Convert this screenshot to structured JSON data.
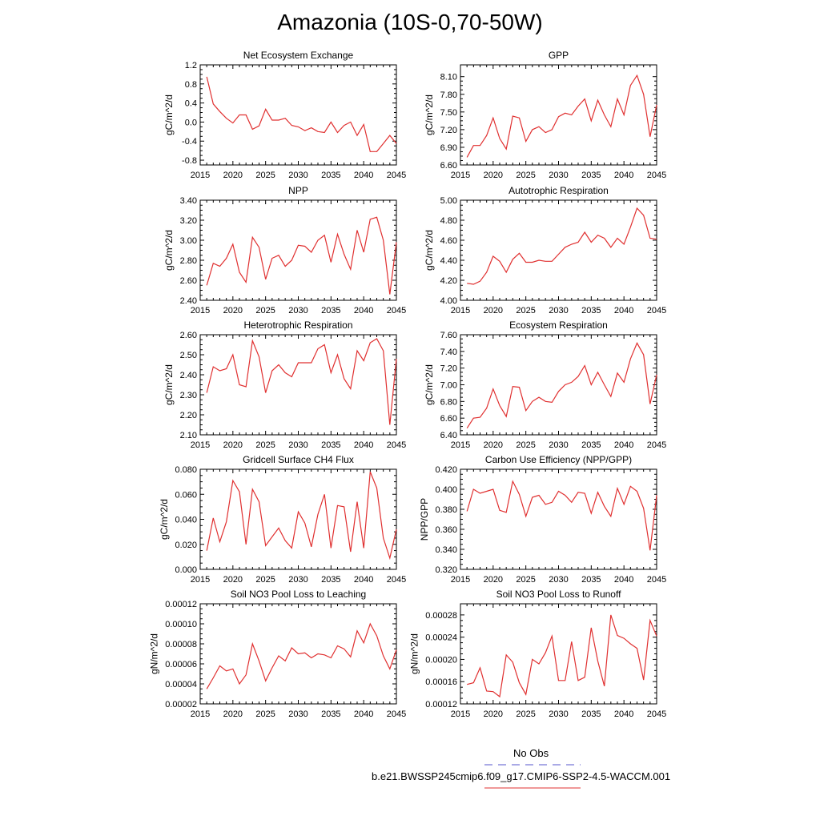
{
  "figure": {
    "title": "Amazonia (10S-0,70-50W)",
    "legend": [
      {
        "label": "No Obs",
        "color": "#5555cc",
        "style": "dashed"
      },
      {
        "label": "b.e21.BWSSP245cmip6.f09_g17.CMIP6-SSP2-4.5-WACCM.001",
        "color": "#e03030",
        "style": "solid"
      }
    ]
  },
  "chart_data": [
    {
      "type": "line",
      "title": "Net Ecosystem Exchange",
      "ylabel": "gC/m^2/d",
      "xlabel": "",
      "xlim": [
        2015,
        2045
      ],
      "ylim": [
        -0.9,
        1.2
      ],
      "xticks": [
        "2015",
        "2020",
        "2025",
        "2030",
        "2035",
        "2040",
        "2045"
      ],
      "yticks": [
        "-0.8",
        "-0.4",
        "0.0",
        "0.4",
        "0.8",
        "1.2"
      ],
      "x": [
        2016,
        2017,
        2018,
        2019,
        2020,
        2021,
        2022,
        2023,
        2024,
        2025,
        2026,
        2027,
        2028,
        2029,
        2030,
        2031,
        2032,
        2033,
        2034,
        2035,
        2036,
        2037,
        2038,
        2039,
        2040,
        2041,
        2042,
        2043,
        2044,
        2045
      ],
      "values": [
        0.95,
        0.38,
        0.22,
        0.08,
        -0.02,
        0.15,
        0.15,
        -0.15,
        -0.08,
        0.27,
        0.04,
        0.04,
        0.08,
        -0.07,
        -0.1,
        -0.18,
        -0.12,
        -0.2,
        -0.22,
        0.0,
        -0.22,
        -0.07,
        0.0,
        -0.28,
        -0.05,
        -0.62,
        -0.62,
        -0.45,
        -0.28,
        -0.45
      ],
      "series_color": "#e03030"
    },
    {
      "type": "line",
      "title": "GPP",
      "ylabel": "gC/m^2/d",
      "xlabel": "",
      "xlim": [
        2015,
        2045
      ],
      "ylim": [
        6.6,
        8.3
      ],
      "xticks": [
        "2015",
        "2020",
        "2025",
        "2030",
        "2035",
        "2040",
        "2045"
      ],
      "yticks": [
        "6.60",
        "6.90",
        "7.20",
        "7.50",
        "7.80",
        "8.10"
      ],
      "x": [
        2016,
        2017,
        2018,
        2019,
        2020,
        2021,
        2022,
        2023,
        2024,
        2025,
        2026,
        2027,
        2028,
        2029,
        2030,
        2031,
        2032,
        2033,
        2034,
        2035,
        2036,
        2037,
        2038,
        2039,
        2040,
        2041,
        2042,
        2043,
        2044,
        2045
      ],
      "values": [
        6.73,
        6.93,
        6.93,
        7.1,
        7.4,
        7.05,
        6.87,
        7.43,
        7.4,
        7.0,
        7.2,
        7.25,
        7.15,
        7.2,
        7.42,
        7.48,
        7.45,
        7.6,
        7.72,
        7.35,
        7.7,
        7.45,
        7.25,
        7.72,
        7.45,
        7.95,
        8.12,
        7.8,
        7.08,
        7.62
      ],
      "series_color": "#e03030"
    },
    {
      "type": "line",
      "title": "NPP",
      "ylabel": "gC/m^2/d",
      "xlabel": "",
      "xlim": [
        2015,
        2045
      ],
      "ylim": [
        2.4,
        3.4
      ],
      "xticks": [
        "2015",
        "2020",
        "2025",
        "2030",
        "2035",
        "2040",
        "2045"
      ],
      "yticks": [
        "2.40",
        "2.60",
        "2.80",
        "3.00",
        "3.20",
        "3.40"
      ],
      "x": [
        2016,
        2017,
        2018,
        2019,
        2020,
        2021,
        2022,
        2023,
        2024,
        2025,
        2026,
        2027,
        2028,
        2029,
        2030,
        2031,
        2032,
        2033,
        2034,
        2035,
        2036,
        2037,
        2038,
        2039,
        2040,
        2041,
        2042,
        2043,
        2044,
        2045
      ],
      "values": [
        2.55,
        2.77,
        2.74,
        2.82,
        2.96,
        2.68,
        2.58,
        3.03,
        2.93,
        2.61,
        2.82,
        2.85,
        2.74,
        2.8,
        2.95,
        2.94,
        2.88,
        3.0,
        3.05,
        2.78,
        3.06,
        2.86,
        2.71,
        3.1,
        2.88,
        3.21,
        3.23,
        3.0,
        2.46,
        2.98
      ],
      "series_color": "#e03030"
    },
    {
      "type": "line",
      "title": "Autotrophic Respiration",
      "ylabel": "gC/m^2/d",
      "xlabel": "",
      "xlim": [
        2015,
        2045
      ],
      "ylim": [
        4.0,
        5.0
      ],
      "xticks": [
        "2015",
        "2020",
        "2025",
        "2030",
        "2035",
        "2040",
        "2045"
      ],
      "yticks": [
        "4.00",
        "4.20",
        "4.40",
        "4.60",
        "4.80",
        "5.00"
      ],
      "x": [
        2016,
        2017,
        2018,
        2019,
        2020,
        2021,
        2022,
        2023,
        2024,
        2025,
        2026,
        2027,
        2028,
        2029,
        2030,
        2031,
        2032,
        2033,
        2034,
        2035,
        2036,
        2037,
        2038,
        2039,
        2040,
        2041,
        2042,
        2043,
        2044,
        2045
      ],
      "values": [
        4.17,
        4.16,
        4.19,
        4.28,
        4.44,
        4.39,
        4.28,
        4.41,
        4.47,
        4.38,
        4.38,
        4.4,
        4.39,
        4.39,
        4.46,
        4.53,
        4.56,
        4.58,
        4.68,
        4.58,
        4.65,
        4.62,
        4.53,
        4.62,
        4.56,
        4.73,
        4.92,
        4.85,
        4.62,
        4.61
      ],
      "series_color": "#e03030"
    },
    {
      "type": "line",
      "title": "Heterotrophic Respiration",
      "ylabel": "gC/m^2/d",
      "xlabel": "",
      "xlim": [
        2015,
        2045
      ],
      "ylim": [
        2.1,
        2.6
      ],
      "xticks": [
        "2015",
        "2020",
        "2025",
        "2030",
        "2035",
        "2040",
        "2045"
      ],
      "yticks": [
        "2.10",
        "2.20",
        "2.30",
        "2.40",
        "2.50",
        "2.60"
      ],
      "x": [
        2016,
        2017,
        2018,
        2019,
        2020,
        2021,
        2022,
        2023,
        2024,
        2025,
        2026,
        2027,
        2028,
        2029,
        2030,
        2031,
        2032,
        2033,
        2034,
        2035,
        2036,
        2037,
        2038,
        2039,
        2040,
        2041,
        2042,
        2043,
        2044,
        2045
      ],
      "values": [
        2.31,
        2.44,
        2.42,
        2.43,
        2.5,
        2.35,
        2.34,
        2.57,
        2.49,
        2.31,
        2.42,
        2.45,
        2.41,
        2.39,
        2.46,
        2.46,
        2.46,
        2.53,
        2.55,
        2.41,
        2.5,
        2.38,
        2.33,
        2.52,
        2.47,
        2.56,
        2.58,
        2.52,
        2.15,
        2.48
      ],
      "series_color": "#e03030"
    },
    {
      "type": "line",
      "title": "Ecosystem Respiration",
      "ylabel": "gC/m^2/d",
      "xlabel": "",
      "xlim": [
        2015,
        2045
      ],
      "ylim": [
        6.4,
        7.6
      ],
      "xticks": [
        "2015",
        "2020",
        "2025",
        "2030",
        "2035",
        "2040",
        "2045"
      ],
      "yticks": [
        "6.40",
        "6.60",
        "6.80",
        "7.00",
        "7.20",
        "7.40",
        "7.60"
      ],
      "x": [
        2016,
        2017,
        2018,
        2019,
        2020,
        2021,
        2022,
        2023,
        2024,
        2025,
        2026,
        2027,
        2028,
        2029,
        2030,
        2031,
        2032,
        2033,
        2034,
        2035,
        2036,
        2037,
        2038,
        2039,
        2040,
        2041,
        2042,
        2043,
        2044,
        2045
      ],
      "values": [
        6.48,
        6.6,
        6.61,
        6.72,
        6.95,
        6.75,
        6.62,
        6.98,
        6.97,
        6.69,
        6.8,
        6.85,
        6.8,
        6.79,
        6.92,
        7.0,
        7.03,
        7.1,
        7.23,
        7.0,
        7.15,
        7.0,
        6.86,
        7.14,
        7.03,
        7.31,
        7.5,
        7.36,
        6.77,
        7.12
      ],
      "series_color": "#e03030"
    },
    {
      "type": "line",
      "title": "Gridcell Surface CH4 Flux",
      "ylabel": "gC/m^2/d",
      "xlabel": "",
      "xlim": [
        2015,
        2045
      ],
      "ylim": [
        0.0,
        0.08
      ],
      "xticks": [
        "2015",
        "2020",
        "2025",
        "2030",
        "2035",
        "2040",
        "2045"
      ],
      "yticks": [
        "0.000",
        "0.020",
        "0.040",
        "0.060",
        "0.080"
      ],
      "x": [
        2016,
        2017,
        2018,
        2019,
        2020,
        2021,
        2022,
        2023,
        2024,
        2025,
        2026,
        2027,
        2028,
        2029,
        2030,
        2031,
        2032,
        2033,
        2034,
        2035,
        2036,
        2037,
        2038,
        2039,
        2040,
        2041,
        2042,
        2043,
        2044,
        2045
      ],
      "values": [
        0.015,
        0.041,
        0.022,
        0.038,
        0.071,
        0.062,
        0.02,
        0.064,
        0.054,
        0.019,
        0.026,
        0.033,
        0.023,
        0.017,
        0.046,
        0.037,
        0.018,
        0.044,
        0.06,
        0.017,
        0.051,
        0.05,
        0.014,
        0.054,
        0.017,
        0.078,
        0.065,
        0.025,
        0.009,
        0.032
      ],
      "series_color": "#e03030"
    },
    {
      "type": "line",
      "title": "Carbon Use Efficiency (NPP/GPP)",
      "ylabel": "NPP/GPP",
      "xlabel": "",
      "xlim": [
        2015,
        2045
      ],
      "ylim": [
        0.32,
        0.42
      ],
      "xticks": [
        "2015",
        "2020",
        "2025",
        "2030",
        "2035",
        "2040",
        "2045"
      ],
      "yticks": [
        "0.320",
        "0.340",
        "0.360",
        "0.380",
        "0.400",
        "0.420"
      ],
      "x": [
        2016,
        2017,
        2018,
        2019,
        2020,
        2021,
        2022,
        2023,
        2024,
        2025,
        2026,
        2027,
        2028,
        2029,
        2030,
        2031,
        2032,
        2033,
        2034,
        2035,
        2036,
        2037,
        2038,
        2039,
        2040,
        2041,
        2042,
        2043,
        2044,
        2045
      ],
      "values": [
        0.378,
        0.4,
        0.396,
        0.398,
        0.4,
        0.379,
        0.377,
        0.408,
        0.395,
        0.373,
        0.392,
        0.394,
        0.385,
        0.387,
        0.398,
        0.394,
        0.387,
        0.397,
        0.396,
        0.376,
        0.397,
        0.383,
        0.373,
        0.401,
        0.385,
        0.403,
        0.398,
        0.381,
        0.339,
        0.394
      ],
      "series_color": "#e03030"
    },
    {
      "type": "line",
      "title": "Soil NO3 Pool Loss to Leaching",
      "ylabel": "gN/m^2/d",
      "xlabel": "",
      "xlim": [
        2015,
        2045
      ],
      "ylim": [
        2e-05,
        0.00012
      ],
      "xticks": [
        "2015",
        "2020",
        "2025",
        "2030",
        "2035",
        "2040",
        "2045"
      ],
      "yticks": [
        "0.00002",
        "0.00004",
        "0.00006",
        "0.00008",
        "0.00010",
        "0.00012"
      ],
      "x": [
        2016,
        2017,
        2018,
        2019,
        2020,
        2021,
        2022,
        2023,
        2024,
        2025,
        2026,
        2027,
        2028,
        2029,
        2030,
        2031,
        2032,
        2033,
        2034,
        2035,
        2036,
        2037,
        2038,
        2039,
        2040,
        2041,
        2042,
        2043,
        2044,
        2045
      ],
      "values": [
        3.5e-05,
        4.6e-05,
        5.8e-05,
        5.3e-05,
        5.5e-05,
        4e-05,
        4.9e-05,
        8e-05,
        6.3e-05,
        4.3e-05,
        5.6e-05,
        6.8e-05,
        6.3e-05,
        7.6e-05,
        7e-05,
        7.1e-05,
        6.6e-05,
        7e-05,
        6.9e-05,
        6.6e-05,
        7.8e-05,
        7.5e-05,
        6.7e-05,
        9.3e-05,
        8.1e-05,
        0.0001,
        8.8e-05,
        6.8e-05,
        5.5e-05,
        7.4e-05
      ],
      "series_color": "#e03030"
    },
    {
      "type": "line",
      "title": "Soil NO3 Pool Loss to Runoff",
      "ylabel": "gN/m^2/d",
      "xlabel": "",
      "xlim": [
        2015,
        2045
      ],
      "ylim": [
        0.00012,
        0.0003
      ],
      "xticks": [
        "2015",
        "2020",
        "2025",
        "2030",
        "2035",
        "2040",
        "2045"
      ],
      "yticks": [
        "0.00012",
        "0.00016",
        "0.00020",
        "0.00024",
        "0.00028"
      ],
      "x": [
        2016,
        2017,
        2018,
        2019,
        2020,
        2021,
        2022,
        2023,
        2024,
        2025,
        2026,
        2027,
        2028,
        2029,
        2030,
        2031,
        2032,
        2033,
        2034,
        2035,
        2036,
        2037,
        2038,
        2039,
        2040,
        2041,
        2042,
        2043,
        2044,
        2045
      ],
      "values": [
        0.000155,
        0.000158,
        0.000185,
        0.000143,
        0.000142,
        0.000133,
        0.000208,
        0.000195,
        0.000158,
        0.000137,
        0.0002,
        0.000192,
        0.000212,
        0.000242,
        0.000162,
        0.000162,
        0.000232,
        0.000162,
        0.000168,
        0.000257,
        0.000197,
        0.000152,
        0.00028,
        0.000243,
        0.000238,
        0.000228,
        0.00022,
        0.000163,
        0.00027,
        0.000242
      ],
      "series_color": "#e03030"
    }
  ]
}
